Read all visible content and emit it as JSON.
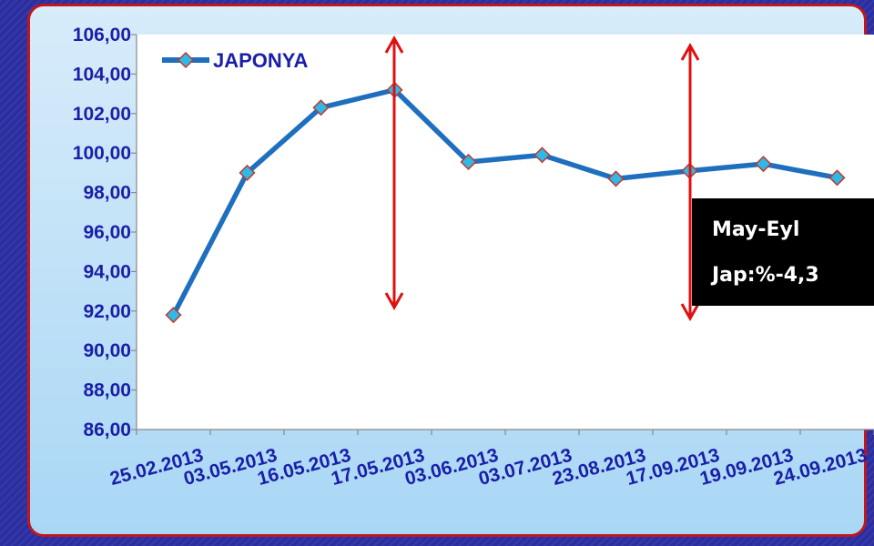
{
  "chart_data": {
    "type": "line",
    "categories": [
      "25.02.2013",
      "03.05.2013",
      "16.05.2013",
      "17.05.2013",
      "03.06.2013",
      "03.07.2013",
      "23.08.2013",
      "17.09.2013",
      "19.09.2013",
      "24.09.2013"
    ],
    "series": [
      {
        "name": "JAPONYA",
        "values": [
          91.8,
          99.0,
          102.3,
          103.2,
          99.55,
          99.9,
          98.7,
          99.1,
          99.45,
          98.75
        ]
      }
    ],
    "yticks": [
      "86,00",
      "88,00",
      "90,00",
      "92,00",
      "94,00",
      "96,00",
      "98,00",
      "100,00",
      "102,00",
      "104,00",
      "106,00"
    ],
    "ylim": [
      86,
      106
    ],
    "legend_position": "top-left",
    "colors": {
      "line": "#1f6fbf",
      "marker_fill": "#2fb8e8",
      "marker_stroke": "#c0392b",
      "arrow": "#e01010",
      "tick_text": "#1a1fa8"
    },
    "annotation": {
      "line1": "May-Eyl",
      "line2": "Jap:%-4,3"
    }
  }
}
